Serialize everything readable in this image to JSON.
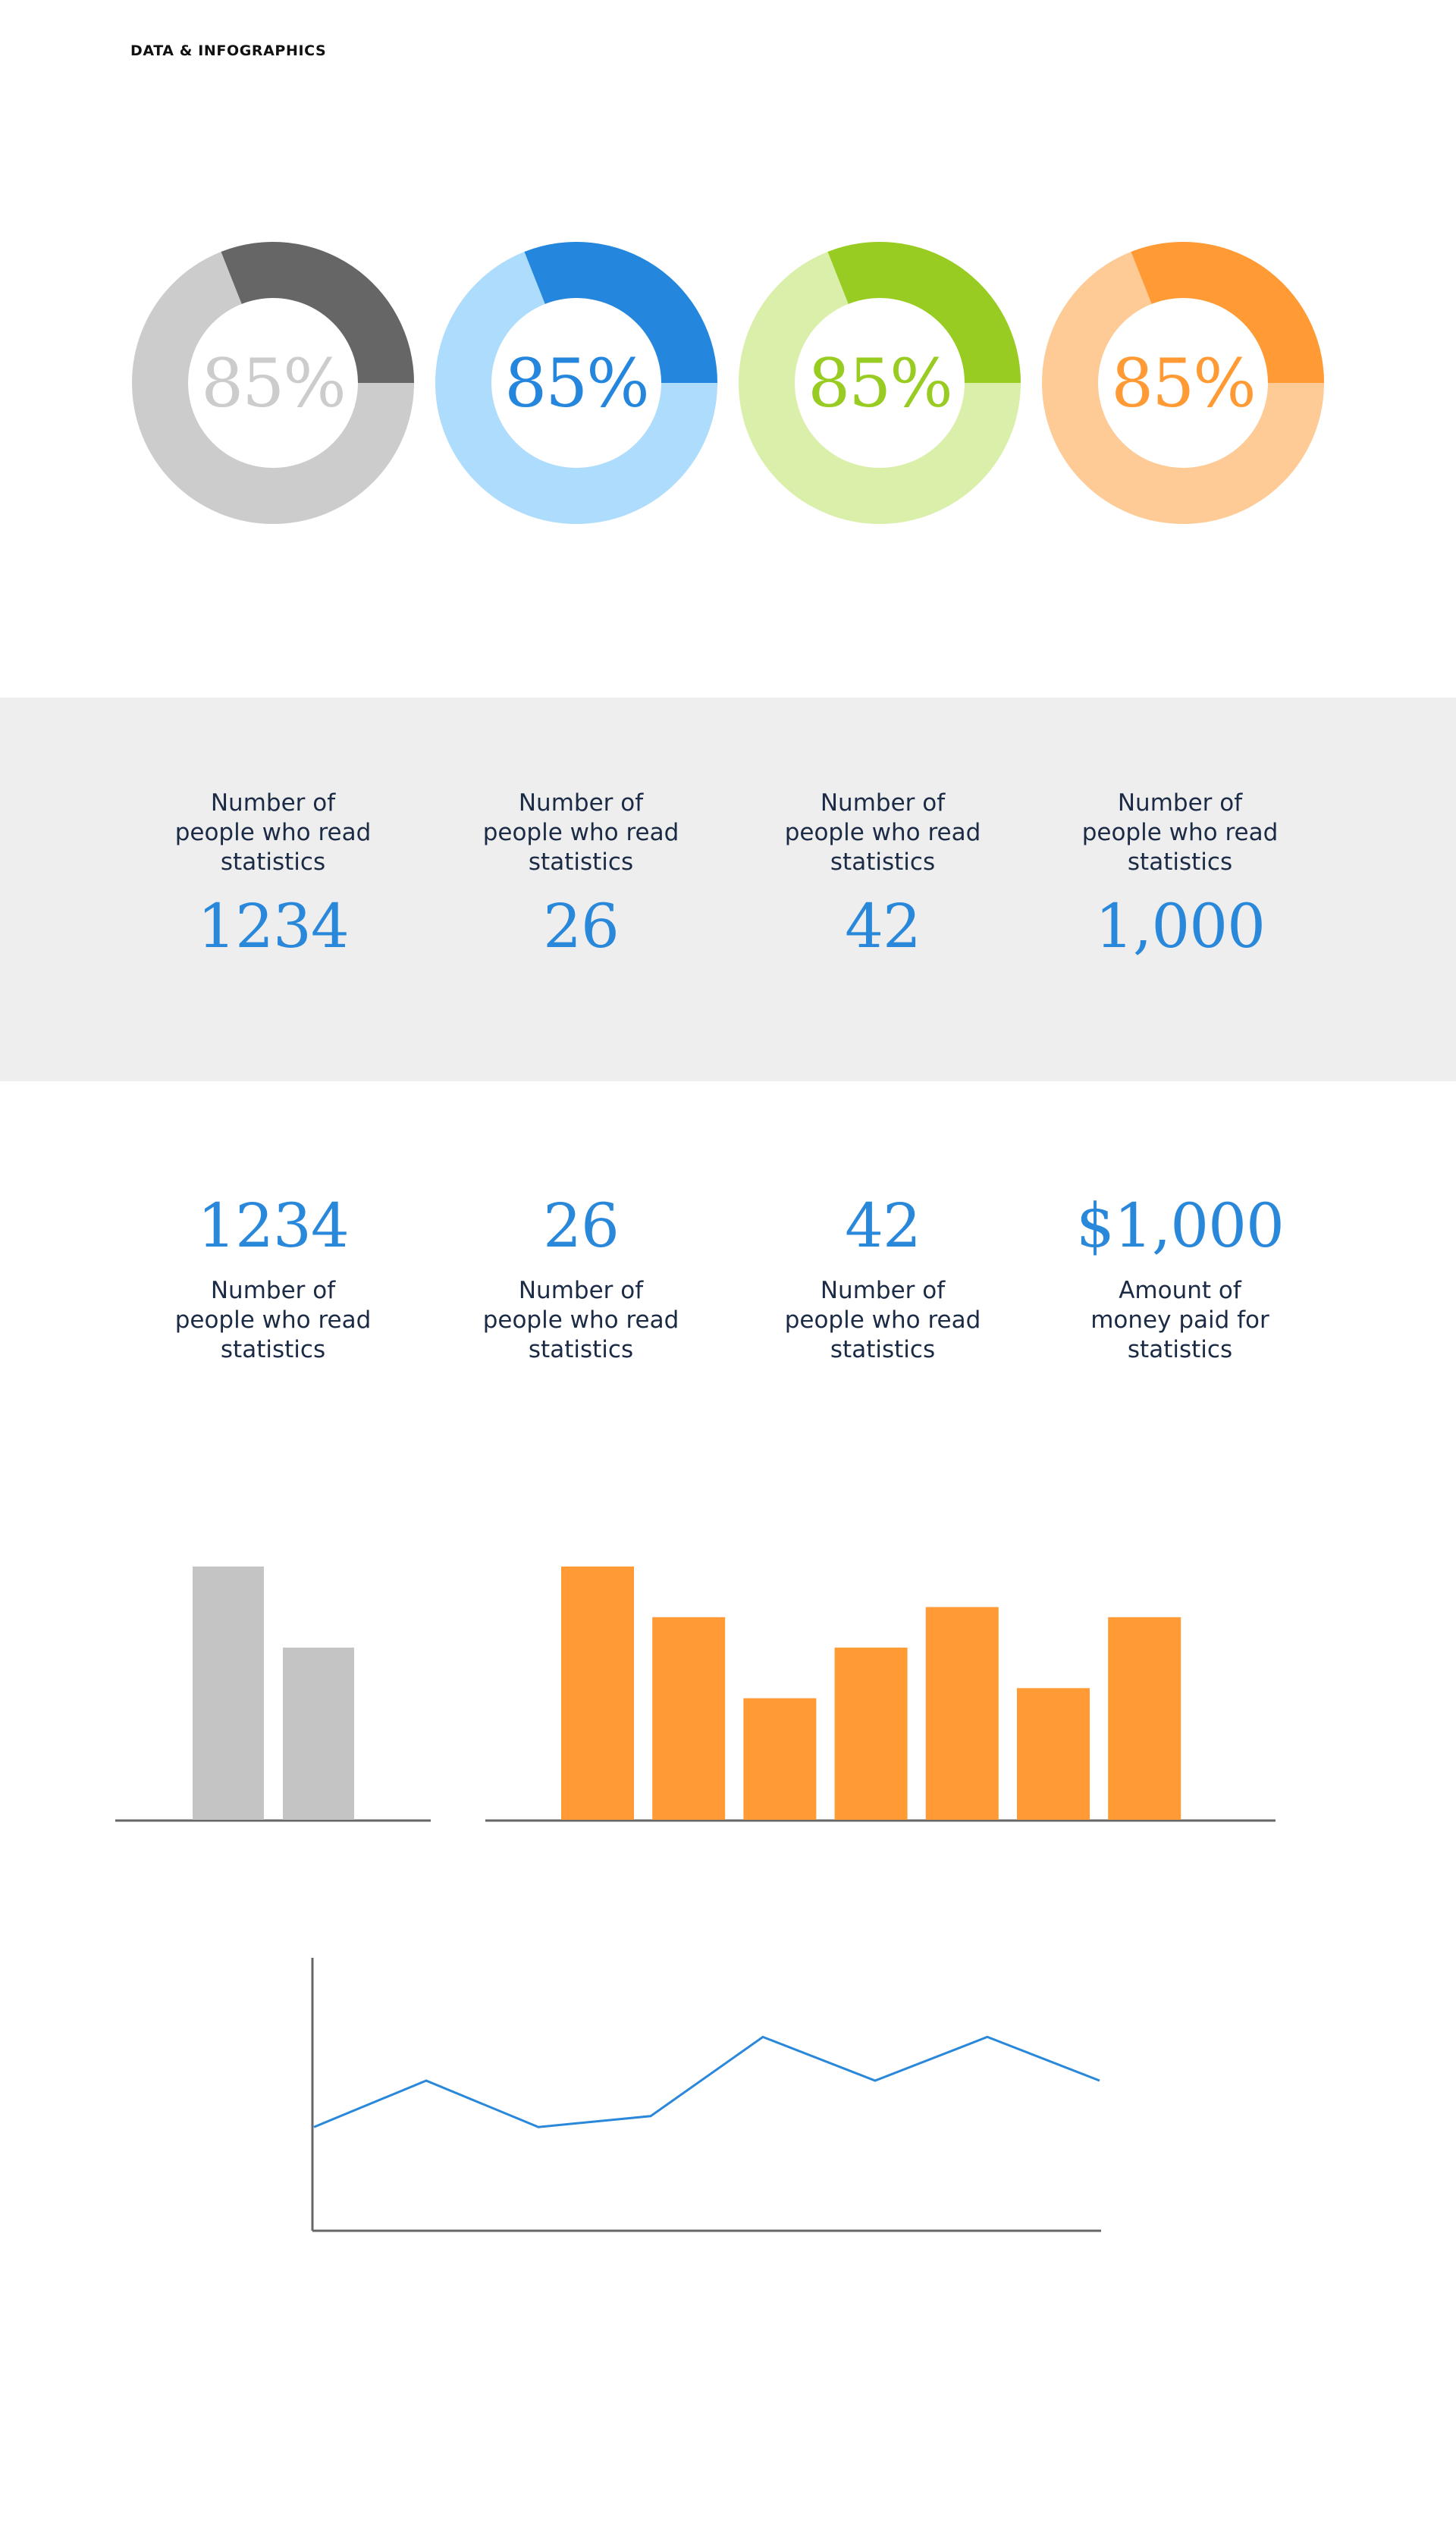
{
  "header": {
    "title": "DATA & INFOGRAPHICS"
  },
  "colors": {
    "gray_dark": "#666666",
    "gray_light": "#cccccc",
    "blue_dark": "#2486dc",
    "blue_light": "#addcfd",
    "green_dark": "#99cc22",
    "green_light": "#daf0aa",
    "orange_dark": "#ff9a35",
    "orange_light": "#fecb96",
    "number_blue": "#2a88db",
    "caption_navy": "#1c2b45",
    "bar_gray": "#c4c4c4",
    "bar_orange": "#ff9a35",
    "line_blue": "#2a88db",
    "axis": "#666666"
  },
  "donuts": [
    {
      "label": "85%",
      "value": 85,
      "highlight": 25,
      "dark": "#666666",
      "light": "#cccccc",
      "text_color": "#cccccc"
    },
    {
      "label": "85%",
      "value": 85,
      "highlight": 25,
      "dark": "#2486dc",
      "light": "#addcfd",
      "text_color": "#2486dc"
    },
    {
      "label": "85%",
      "value": 85,
      "highlight": 25,
      "dark": "#99cc22",
      "light": "#daf0aa",
      "text_color": "#99cc22"
    },
    {
      "label": "85%",
      "value": 85,
      "highlight": 25,
      "dark": "#ff9a35",
      "light": "#fecb96",
      "text_color": "#ff9a35"
    }
  ],
  "stats_top": [
    {
      "caption": "Number of\npeople who read\nstatistics",
      "number": "1234"
    },
    {
      "caption": "Number of\npeople who read\nstatistics",
      "number": "26"
    },
    {
      "caption": "Number of\npeople who read\nstatistics",
      "number": "42"
    },
    {
      "caption": "Number of\npeople who read\nstatistics",
      "number": "1,000"
    }
  ],
  "stats_bottom": [
    {
      "number": "1234",
      "caption": "Number of\npeople who read\nstatistics"
    },
    {
      "number": "26",
      "caption": "Number of\npeople who read\nstatistics"
    },
    {
      "number": "42",
      "caption": "Number of\npeople who read\nstatistics"
    },
    {
      "number": "$1,000",
      "caption": "Amount of\nmoney paid for\nstatistics"
    }
  ],
  "chart_data": [
    {
      "type": "bar",
      "values": [
        100,
        68
      ],
      "ylim": [
        0,
        100
      ],
      "color": "#c4c4c4"
    },
    {
      "type": "bar",
      "values": [
        100,
        80,
        48,
        68,
        84,
        52,
        80
      ],
      "ylim": [
        0,
        100
      ],
      "color": "#ff9a35"
    },
    {
      "type": "line",
      "values": [
        38,
        55,
        38,
        42,
        71,
        55,
        71,
        55
      ],
      "ylim": [
        0,
        100
      ],
      "color": "#2a88db"
    }
  ]
}
